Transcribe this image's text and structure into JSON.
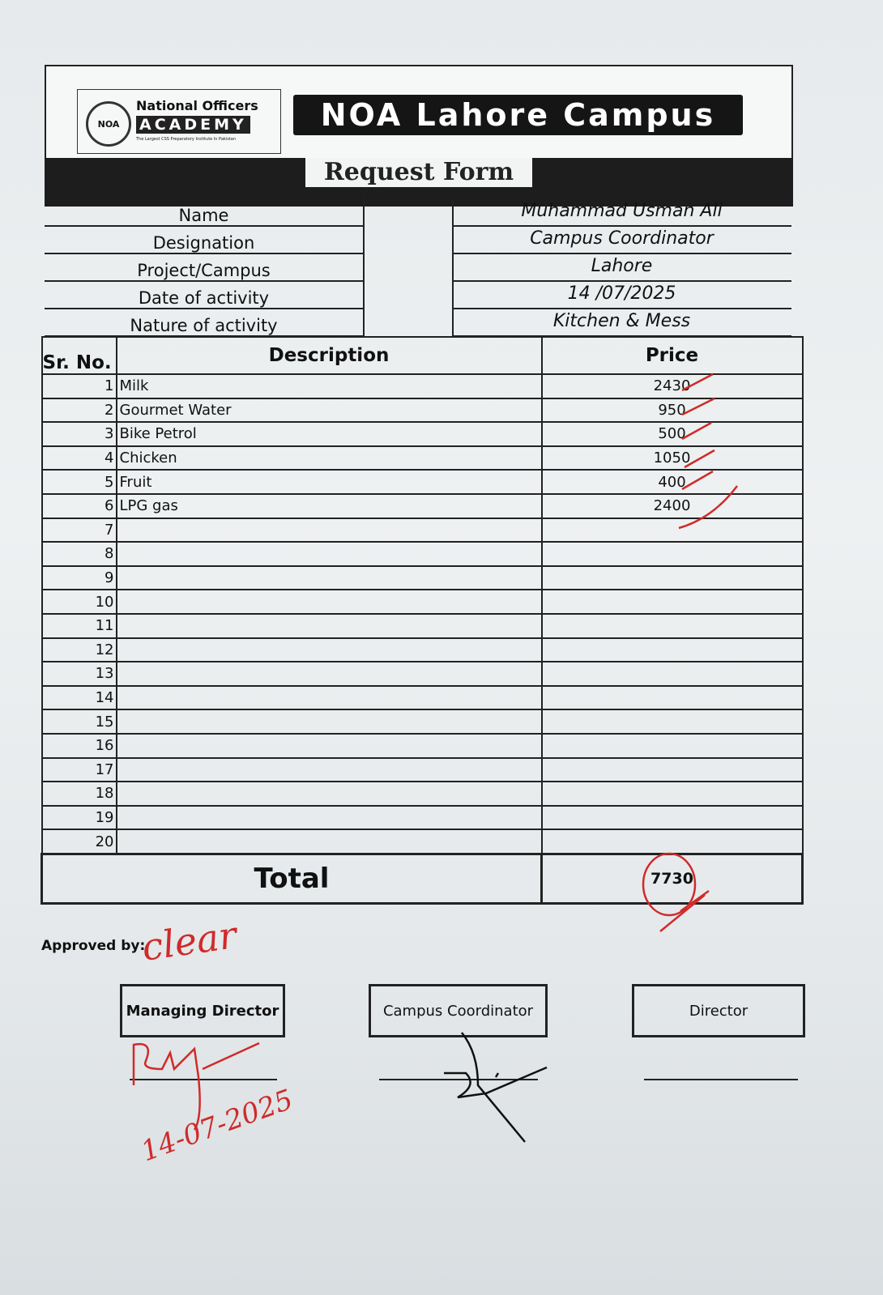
{
  "header": {
    "logo_text": {
      "line1": "National Officers",
      "line2": "ACADEMY",
      "seal": "NOA",
      "tagline": "The Largest CSS Preparatory Institute In Pakistan"
    },
    "campus_title": "NOA Lahore Campus",
    "form_title": "Request Form"
  },
  "info": [
    {
      "label": "Name",
      "value": "Muhammad Usman Ali"
    },
    {
      "label": "Designation",
      "value": "Campus Coordinator"
    },
    {
      "label": "Project/Campus",
      "value": "Lahore"
    },
    {
      "label": "Date of activity",
      "value": "14 /07/2025"
    },
    {
      "label": "Nature of activity",
      "value": "Kitchen & Mess"
    }
  ],
  "table": {
    "headers": {
      "sr": "Sr. No.",
      "description": "Description",
      "price": "Price"
    },
    "rows": [
      {
        "sr": "1",
        "description": "Milk",
        "price": "2430"
      },
      {
        "sr": "2",
        "description": "Gourmet Water",
        "price": "950"
      },
      {
        "sr": "3",
        "description": "Bike Petrol",
        "price": "500"
      },
      {
        "sr": "4",
        "description": "Chicken",
        "price": "1050"
      },
      {
        "sr": "5",
        "description": "Fruit",
        "price": "400"
      },
      {
        "sr": "6",
        "description": "LPG gas",
        "price": "2400"
      },
      {
        "sr": "7",
        "description": "",
        "price": ""
      },
      {
        "sr": "8",
        "description": "",
        "price": ""
      },
      {
        "sr": "9",
        "description": "",
        "price": ""
      },
      {
        "sr": "10",
        "description": "",
        "price": ""
      },
      {
        "sr": "11",
        "description": "",
        "price": ""
      },
      {
        "sr": "12",
        "description": "",
        "price": ""
      },
      {
        "sr": "13",
        "description": "",
        "price": ""
      },
      {
        "sr": "14",
        "description": "",
        "price": ""
      },
      {
        "sr": "15",
        "description": "",
        "price": ""
      },
      {
        "sr": "16",
        "description": "",
        "price": ""
      },
      {
        "sr": "17",
        "description": "",
        "price": ""
      },
      {
        "sr": "18",
        "description": "",
        "price": ""
      },
      {
        "sr": "19",
        "description": "",
        "price": ""
      },
      {
        "sr": "20",
        "description": "",
        "price": ""
      }
    ],
    "total_label": "Total",
    "total_value": "7730"
  },
  "approval": {
    "label": "Approved by:",
    "handwritten_note": "clear",
    "signatories": [
      "Managing Director",
      "Campus Coordinator",
      "Director"
    ],
    "handwritten_date": "14-07-2025"
  },
  "colors": {
    "ink_red": "#d02a2a",
    "ink_black": "#111111",
    "banner": "#151515"
  }
}
